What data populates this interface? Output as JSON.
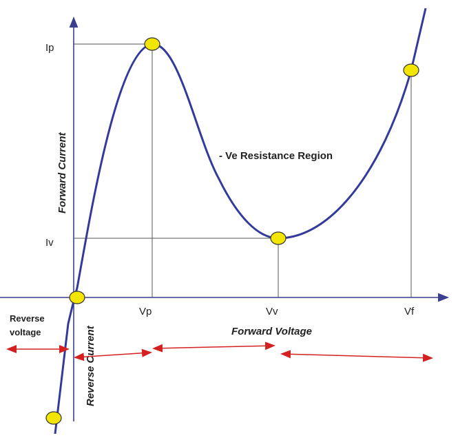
{
  "chart_data": {
    "type": "line",
    "title": "",
    "xlabel": "Forward Voltage",
    "ylabel": "Forward Current",
    "reverse_x_label": [
      "Reverse",
      "voltage"
    ],
    "reverse_y_label": "Reverse Current",
    "region_label": "- Ve Resistance Region",
    "x_ticks": [
      "Vp",
      "Vv",
      "Vf"
    ],
    "y_ticks": [
      "Ip",
      "Iv"
    ],
    "curve_color": "#343a9a",
    "marker_color": "#f2e600",
    "arrow_color": "#d42020"
  }
}
